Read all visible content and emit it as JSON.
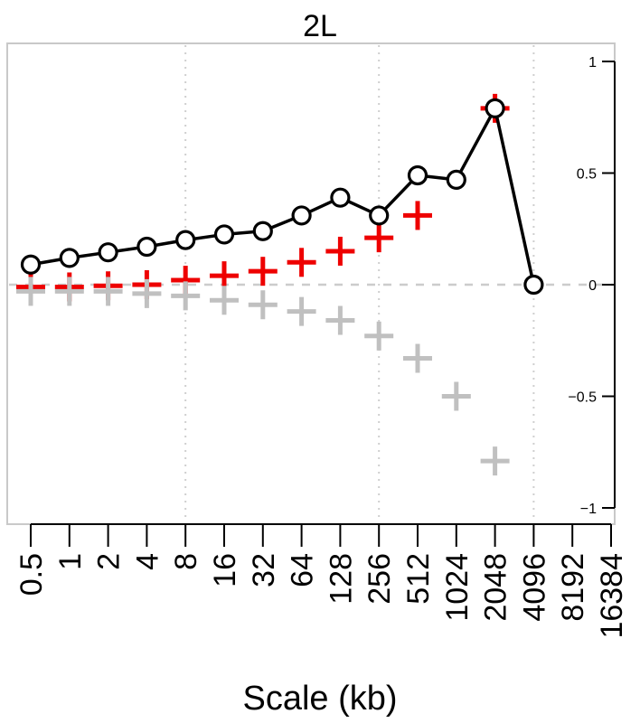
{
  "chart_data": {
    "type": "line",
    "title": "2L",
    "xlabel": "Scale (kb)",
    "ylabel": "",
    "categories": [
      "0.5",
      "1",
      "2",
      "4",
      "8",
      "16",
      "32",
      "64",
      "128",
      "256",
      "512",
      "1024",
      "2048",
      "4096",
      "8192",
      "16384"
    ],
    "ylim": [
      -1,
      1
    ],
    "y_ticks": [
      "-1",
      "-0.5",
      "0",
      "0.5",
      "1"
    ],
    "y_axis_side": "right",
    "reference_line_y": 0,
    "vertical_gridlines_at": [
      "8",
      "256",
      "4096"
    ],
    "grid": "dotted vertical",
    "series": [
      {
        "marker": "circle",
        "line": true,
        "color": "#000000",
        "values": [
          0.09,
          0.12,
          0.145,
          0.17,
          0.2,
          0.225,
          0.24,
          0.31,
          0.39,
          0.31,
          0.49,
          0.47,
          0.79,
          0.0,
          null,
          null
        ]
      },
      {
        "marker": "plus",
        "line": false,
        "color": "#ee0000",
        "values": [
          -0.01,
          -0.01,
          -0.005,
          0.0,
          0.02,
          0.04,
          0.06,
          0.1,
          0.15,
          0.21,
          0.31,
          null,
          0.79,
          null,
          null,
          null
        ]
      },
      {
        "marker": "plus",
        "line": false,
        "color": "#c0c0c0",
        "values": [
          -0.03,
          -0.03,
          -0.03,
          -0.04,
          -0.05,
          -0.07,
          -0.09,
          -0.12,
          -0.16,
          -0.23,
          -0.33,
          -0.5,
          -0.79,
          null,
          null,
          null
        ]
      }
    ]
  }
}
